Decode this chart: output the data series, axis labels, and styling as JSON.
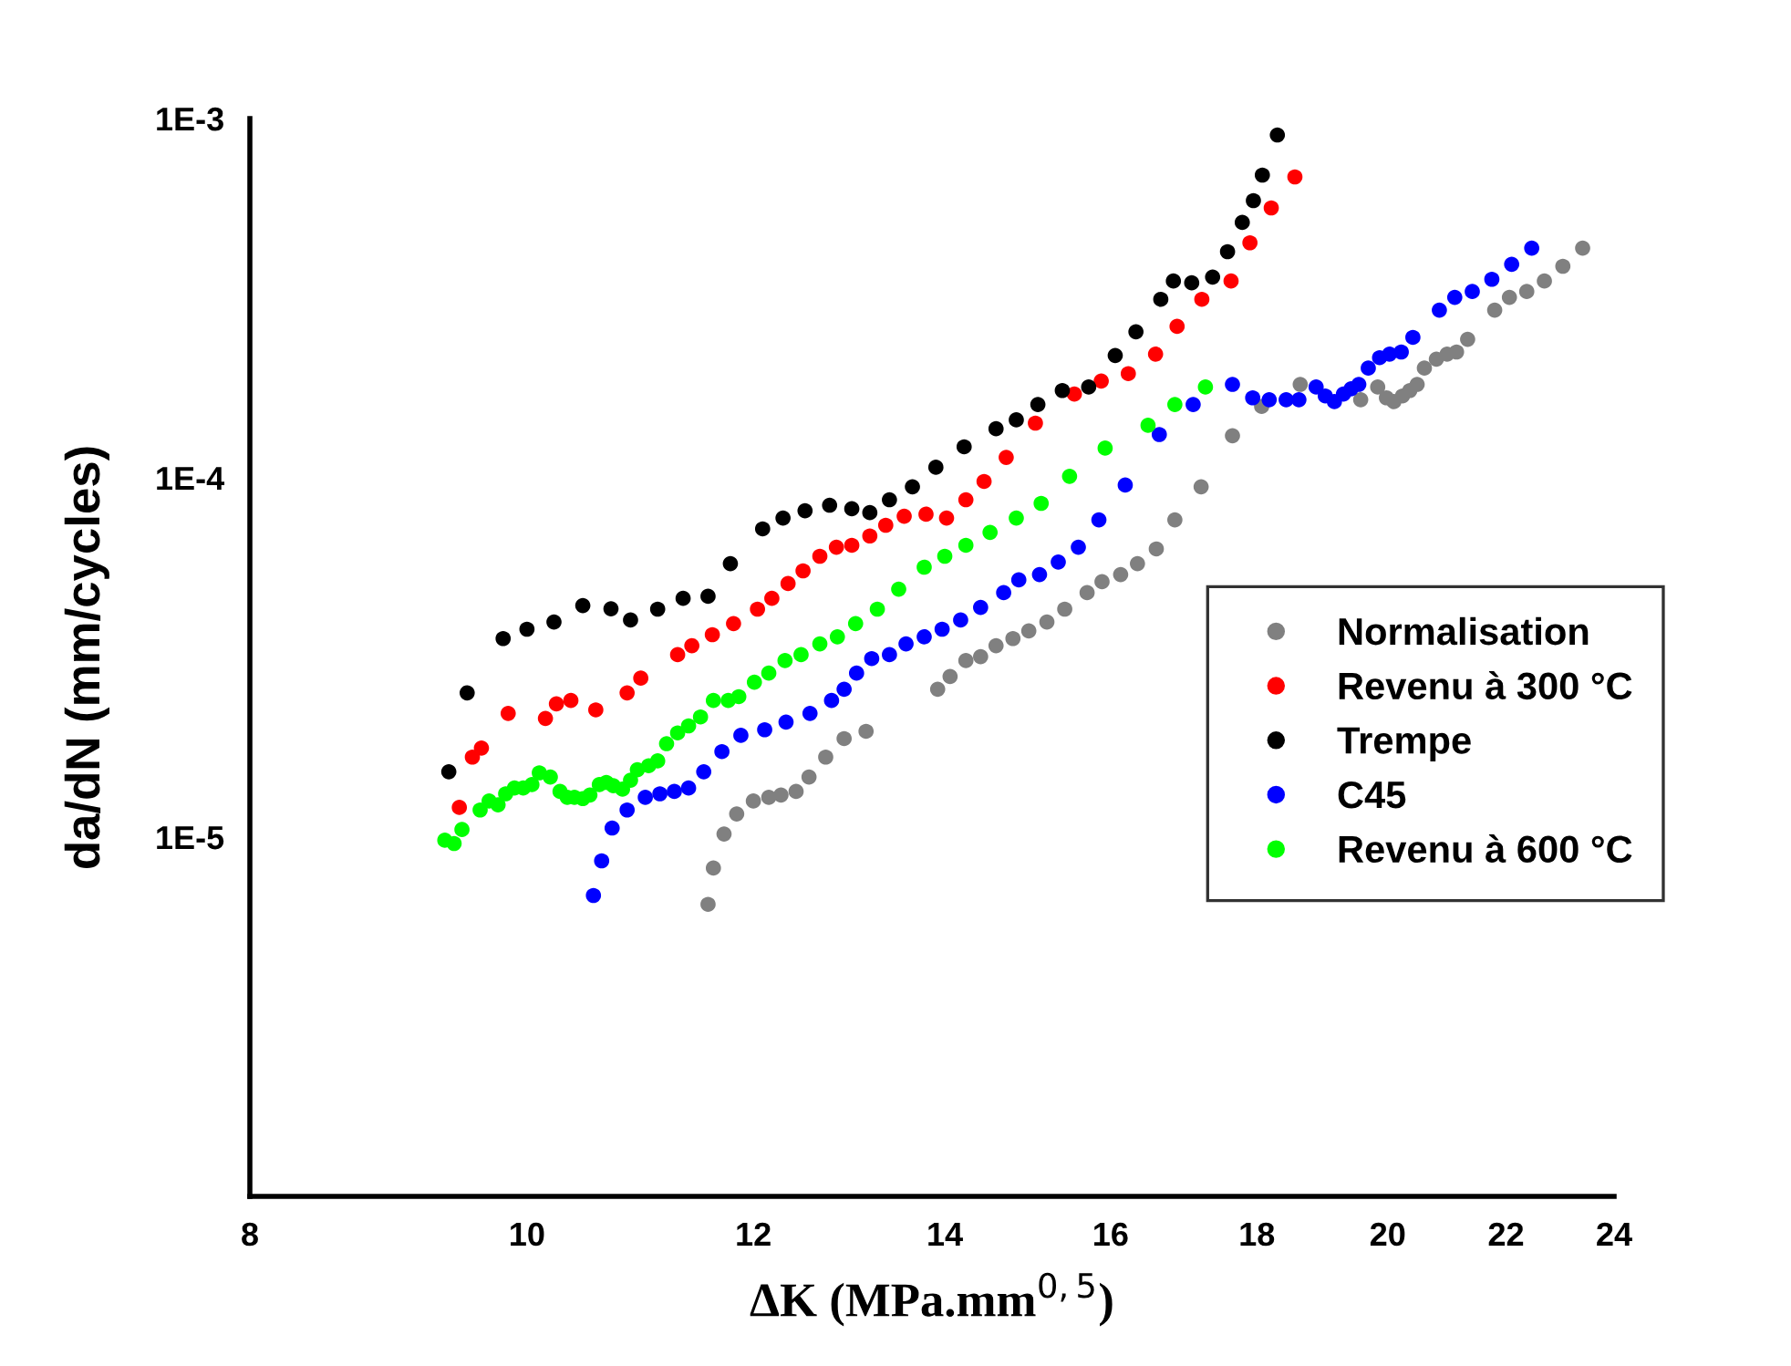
{
  "chart_data": {
    "type": "scatter",
    "xlabel": "ΔK (MPa.mm$^{0,5}$)",
    "ylabel": "da/dN (mm/cycles)",
    "log": "xy",
    "xlim": [
      8,
      24
    ],
    "xticks": [
      8,
      10,
      12,
      14,
      16,
      18,
      20,
      22,
      24
    ],
    "ylim": [
      1e-06,
      0.001
    ],
    "yticks": [
      {
        "value": 1e-05,
        "label": "1E-5"
      },
      {
        "value": 0.0001,
        "label": "1E-4"
      },
      {
        "value": 0.001,
        "label": "1E-3"
      }
    ],
    "marker": "circle",
    "grid": false,
    "legend": "right",
    "series": [
      {
        "name": "Normalisation",
        "color": "#808080",
        "x": [
          11.57,
          11.62,
          11.72,
          11.84,
          12.0,
          12.15,
          12.27,
          12.42,
          12.55,
          12.72,
          12.91,
          13.14,
          13.92,
          14.06,
          14.24,
          14.41,
          14.59,
          14.79,
          14.98,
          15.2,
          15.42,
          15.7,
          15.89,
          16.13,
          16.35,
          16.6,
          16.85,
          17.21,
          17.65,
          18.07,
          18.64,
          18.94,
          19.17,
          19.42,
          19.57,
          19.84,
          19.98,
          20.1,
          20.24,
          20.36,
          20.48,
          20.6,
          20.8,
          20.98,
          21.14,
          21.33,
          21.8,
          22.06,
          22.37,
          22.69,
          23.03,
          23.4
        ],
        "values": [
          6.5e-06,
          8.2e-06,
          1.02e-05,
          1.16e-05,
          1.26e-05,
          1.29e-05,
          1.31e-05,
          1.34e-05,
          1.47e-05,
          1.67e-05,
          1.88e-05,
          1.97e-05,
          2.58e-05,
          2.8e-05,
          3.1e-05,
          3.18e-05,
          3.41e-05,
          3.57e-05,
          3.75e-05,
          3.97e-05,
          4.31e-05,
          4.79e-05,
          5.14e-05,
          5.38e-05,
          5.77e-05,
          6.34e-05,
          7.64e-05,
          9.44e-05,
          0.000131,
          0.000158,
          0.000182,
          null,
          null,
          null,
          0.000165,
          0.000179,
          0.000167,
          0.000163,
          0.000169,
          0.000175,
          0.000182,
          0.000202,
          0.000214,
          0.000221,
          0.000224,
          0.000243,
          0.000293,
          0.000318,
          0.00033,
          0.000353,
          0.000388,
          0.000436
        ]
      },
      {
        "name": "Revenu à 300 °C",
        "color": "#ff0000",
        "x": [
          9.47,
          9.57,
          9.64,
          9.85,
          10.15,
          10.24,
          10.36,
          10.57,
          10.84,
          10.96,
          11.29,
          11.42,
          11.61,
          11.81,
          12.04,
          12.18,
          12.34,
          12.49,
          12.66,
          12.83,
          12.99,
          13.18,
          13.35,
          13.55,
          13.79,
          14.02,
          14.24,
          14.45,
          14.71,
          15.06,
          15.54,
          15.88,
          16.23,
          16.59,
          16.88,
          17.22,
          17.63,
          17.9,
          18.21,
          18.56
        ],
        "values": [
          1.21e-05,
          1.67e-05,
          1.77e-05,
          2.21e-05,
          2.14e-05,
          2.35e-05,
          2.4e-05,
          2.26e-05,
          2.52e-05,
          2.77e-05,
          3.22e-05,
          3.41e-05,
          3.66e-05,
          3.93e-05,
          4.31e-05,
          4.62e-05,
          5.08e-05,
          5.51e-05,
          6.05e-05,
          6.41e-05,
          6.49e-05,
          6.89e-05,
          7.38e-05,
          7.82e-05,
          7.92e-05,
          7.73e-05,
          8.69e-05,
          9.77e-05,
          0.000114,
          0.000142,
          0.000171,
          0.000186,
          0.000195,
          0.000221,
          0.000264,
          0.000314,
          0.000353,
          0.000451,
          0.000564,
          0.000688
        ]
      },
      {
        "name": "Trempe",
        "color": "#000000",
        "x": [
          9.39,
          9.53,
          9.81,
          10.0,
          10.22,
          10.46,
          10.7,
          10.87,
          11.11,
          11.34,
          11.57,
          11.78,
          12.09,
          12.29,
          12.51,
          12.76,
          12.99,
          13.18,
          13.39,
          13.64,
          13.9,
          14.22,
          14.59,
          14.83,
          15.09,
          15.39,
          15.72,
          16.06,
          16.33,
          16.66,
          16.83,
          17.08,
          17.37,
          17.58,
          17.79,
          17.95,
          18.08,
          18.3
        ],
        "values": [
          1.52e-05,
          2.52e-05,
          3.57e-05,
          3.79e-05,
          3.97e-05,
          4.41e-05,
          4.32e-05,
          4.02e-05,
          4.31e-05,
          4.62e-05,
          4.68e-05,
          5.77e-05,
          7.21e-05,
          7.73e-05,
          8.1e-05,
          8.39e-05,
          8.2e-05,
          8e-05,
          8.69e-05,
          9.44e-05,
          0.000107,
          0.000122,
          0.000137,
          0.000145,
          0.00016,
          0.000175,
          0.000179,
          0.000219,
          0.000255,
          0.000314,
          0.000353,
          0.000349,
          0.000362,
          0.000426,
          0.000514,
          0.000591,
          0.000696,
          0.0009
        ]
      },
      {
        "name": "C45",
        "color": "#0000ff",
        "x": [
          10.55,
          10.62,
          10.71,
          10.84,
          11.0,
          11.13,
          11.26,
          11.39,
          11.53,
          11.7,
          11.88,
          12.11,
          12.32,
          12.56,
          12.78,
          12.91,
          13.04,
          13.2,
          13.39,
          13.57,
          13.77,
          13.97,
          14.18,
          14.41,
          14.68,
          14.86,
          15.11,
          15.34,
          15.59,
          15.85,
          16.19,
          16.64,
          17.1,
          17.65,
          17.94,
          18.18,
          18.43,
          18.62,
          18.88,
          19.02,
          19.16,
          19.3,
          19.42,
          19.54,
          19.69,
          19.87,
          20.03,
          20.22,
          20.41,
          20.85,
          21.11,
          21.41,
          21.75,
          22.1,
          22.46
        ],
        "values": [
          6.88e-06,
          8.59e-06,
          1.06e-05,
          1.19e-05,
          1.29e-05,
          1.32e-05,
          1.34e-05,
          1.37e-05,
          1.52e-05,
          1.73e-05,
          1.92e-05,
          1.99e-05,
          2.09e-05,
          2.21e-05,
          2.4e-05,
          2.58e-05,
          2.86e-05,
          3.14e-05,
          3.22e-05,
          3.45e-05,
          3.61e-05,
          3.79e-05,
          4.02e-05,
          4.36e-05,
          4.79e-05,
          5.2e-05,
          5.38e-05,
          5.83e-05,
          6.41e-05,
          7.64e-05,
          9.55e-05,
          0.000132,
          0.00016,
          0.000182,
          0.000167,
          0.000165,
          0.000165,
          0.000165,
          0.000179,
          0.000169,
          0.000163,
          0.000171,
          0.000177,
          0.000182,
          0.000202,
          0.000216,
          0.000221,
          0.000224,
          0.000246,
          0.000293,
          0.000318,
          0.00033,
          0.000357,
          0.000393,
          0.000436
        ]
      },
      {
        "name": "Revenu à 600 °C",
        "color": "#00ff00",
        "x": [
          9.36,
          9.43,
          9.49,
          9.63,
          9.7,
          9.77,
          9.83,
          9.9,
          9.97,
          10.04,
          10.1,
          10.19,
          10.27,
          10.33,
          10.39,
          10.46,
          10.52,
          10.6,
          10.66,
          10.72,
          10.8,
          10.87,
          10.93,
          11.03,
          11.11,
          11.19,
          11.29,
          11.39,
          11.5,
          11.62,
          11.76,
          11.86,
          12.01,
          12.15,
          12.31,
          12.47,
          12.66,
          12.84,
          13.03,
          13.26,
          13.49,
          13.77,
          14.0,
          14.24,
          14.52,
          14.83,
          15.13,
          15.48,
          15.93,
          16.49,
          16.85,
          17.27
        ],
        "values": [
          9.8e-06,
          9.6e-06,
          1.05e-05,
          1.19e-05,
          1.26e-05,
          1.23e-05,
          1.32e-05,
          1.37e-05,
          1.37e-05,
          1.4e-05,
          1.51e-05,
          1.47e-05,
          1.34e-05,
          1.29e-05,
          1.29e-05,
          1.28e-05,
          1.31e-05,
          1.4e-05,
          1.42e-05,
          1.39e-05,
          1.36e-05,
          1.44e-05,
          1.54e-05,
          1.58e-05,
          1.63e-05,
          1.82e-05,
          1.95e-05,
          2.04e-05,
          2.16e-05,
          2.4e-05,
          2.4e-05,
          2.46e-05,
          2.7e-05,
          2.86e-05,
          3.1e-05,
          3.22e-05,
          3.45e-05,
          3.61e-05,
          3.93e-05,
          4.31e-05,
          4.9e-05,
          5.64e-05,
          6.05e-05,
          6.49e-05,
          7.05e-05,
          7.73e-05,
          8.49e-05,
          0.000101,
          0.000121,
          0.00014,
          0.00016,
          0.000179
        ]
      }
    ]
  }
}
